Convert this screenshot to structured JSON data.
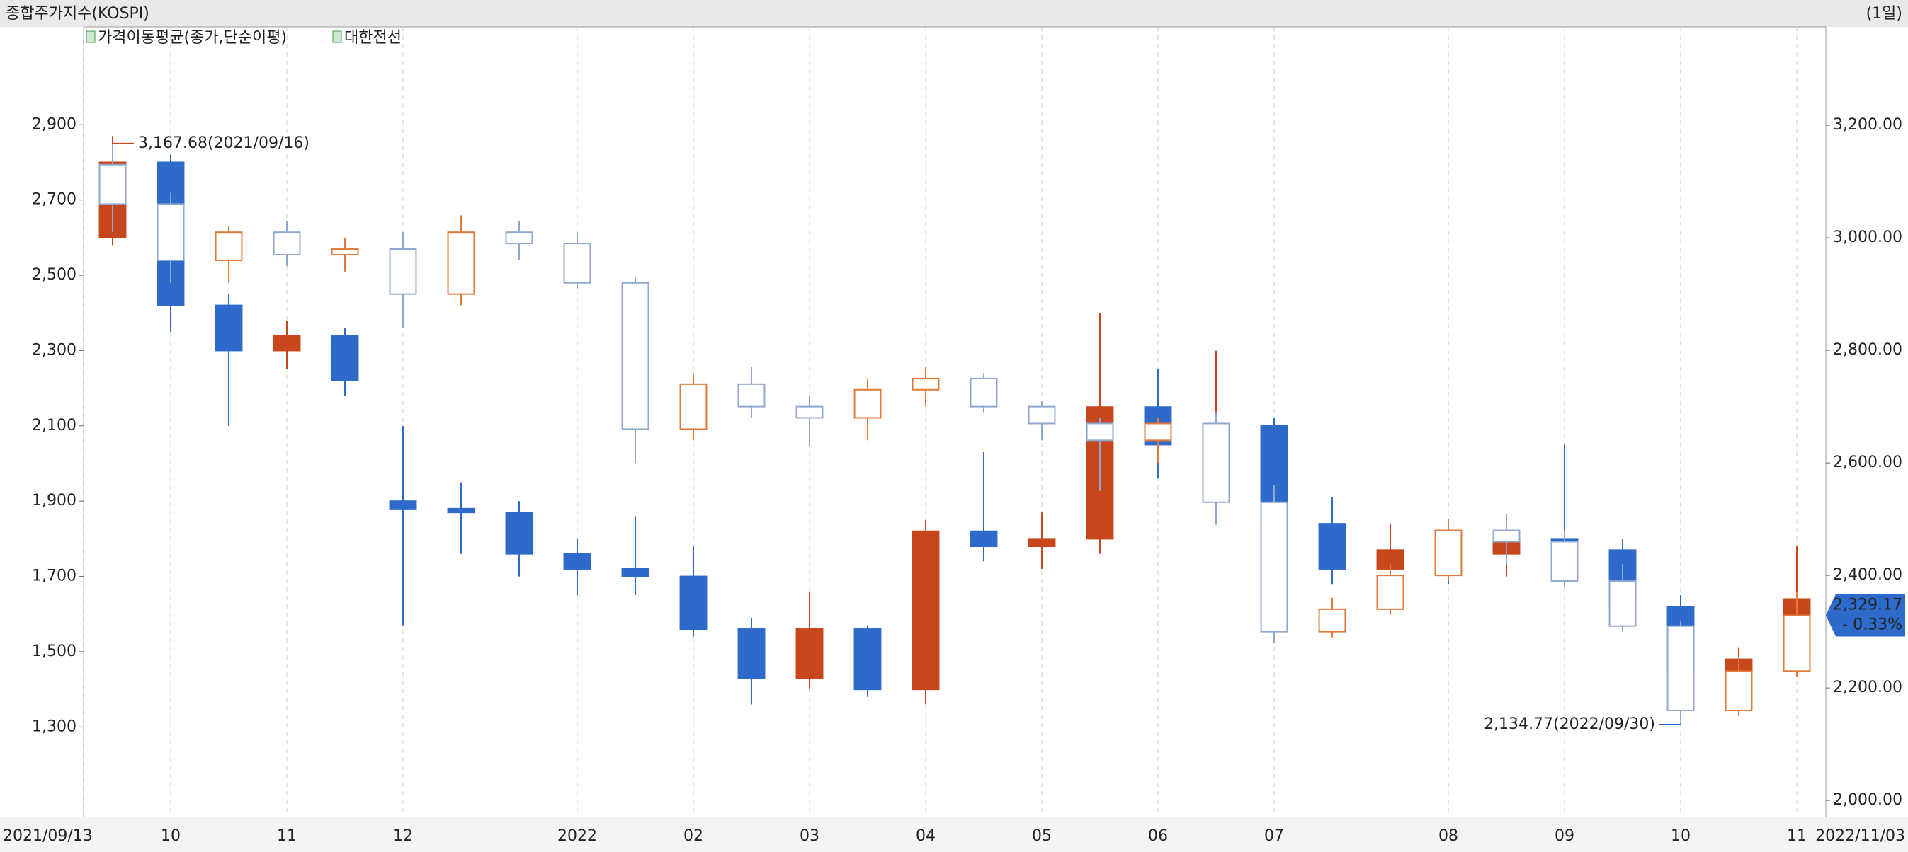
{
  "chart_data": {
    "type": "candlestick",
    "title": "종합주가지수(KOSPI)",
    "period": "(1일)",
    "indicator": "가격이동평균(종가,단순이평)",
    "categories": [
      "2021/09/13",
      "10",
      null,
      "11",
      null,
      "12",
      null,
      null,
      "2022",
      null,
      "02",
      null,
      "03",
      null,
      "04",
      null,
      "05",
      null,
      "06",
      null,
      "07",
      null,
      null,
      "08",
      null,
      "09",
      null,
      "10",
      null,
      "11"
    ],
    "end_date": "2022/11/03",
    "up_color": "#c8461b",
    "down_color": "#2d6ac9",
    "hollow_up_color": "#e07a3a",
    "hollow_down_color": "#8fa8cf",
    "ylim": [
      1060,
      3160
    ],
    "yticks": [
      {
        "value": 1300,
        "label": "1,300"
      },
      {
        "value": 1500,
        "label": "1,500"
      },
      {
        "value": 1700,
        "label": "1,700"
      },
      {
        "value": 1900,
        "label": "1,900"
      },
      {
        "value": 2100,
        "label": "2,100"
      },
      {
        "value": 2300,
        "label": "2,300"
      },
      {
        "value": 2500,
        "label": "2,500"
      },
      {
        "value": 2700,
        "label": "2,700"
      },
      {
        "value": 2900,
        "label": "2,900"
      }
    ],
    "y2lim": [
      1970,
      3375
    ],
    "y2ticks": [
      {
        "value": 2000,
        "label": "2,000.00"
      },
      {
        "value": 2200,
        "label": "2,200.00"
      },
      {
        "value": 2400,
        "label": "2,400.00"
      },
      {
        "value": 2600,
        "label": "2,600.00"
      },
      {
        "value": 2800,
        "label": "2,800.00"
      },
      {
        "value": 3000,
        "label": "3,000.00"
      },
      {
        "value": 3200,
        "label": "3,200.00"
      }
    ],
    "series": [
      {
        "name": "대한전선",
        "axis": "y",
        "hollow": false,
        "open": [
          2600,
          2800,
          2420,
          2300,
          2340,
          1900,
          1880,
          1870,
          1760,
          1720,
          1700,
          1560,
          1430,
          1560,
          1400,
          1820,
          1780,
          1800,
          2150,
          2050,
          2100,
          1840,
          1720,
          1770,
          1760,
          1800,
          1770,
          1620,
          1450,
          1480
        ],
        "high": [
          2870,
          2820,
          2450,
          2380,
          2360,
          2100,
          1950,
          1900,
          1800,
          1860,
          1780,
          1590,
          1660,
          1570,
          1850,
          2030,
          1870,
          2400,
          2250,
          2300,
          2120,
          1910,
          1840,
          1820,
          1850,
          2050,
          1800,
          1650,
          1510,
          1780
        ],
        "low": [
          2580,
          2350,
          2100,
          2250,
          2180,
          1570,
          1760,
          1700,
          1650,
          1650,
          1540,
          1360,
          1400,
          1380,
          1360,
          1740,
          1720,
          1760,
          1960,
          1950,
          1760,
          1680,
          1640,
          1680,
          1700,
          1730,
          1600,
          1380,
          1330,
          1460
        ],
        "close": [
          2800,
          2420,
          2300,
          2340,
          2220,
          1880,
          1870,
          1760,
          1720,
          1700,
          1560,
          1430,
          1560,
          1400,
          1820,
          1780,
          1800,
          2150,
          2050,
          2100,
          1840,
          1720,
          1770,
          1760,
          1800,
          1770,
          1620,
          1450,
          1480,
          1640
        ]
      },
      {
        "axis": "y2",
        "hollow": true,
        "open": [
          3130,
          3060,
          2960,
          3010,
          2970,
          2980,
          2900,
          3010,
          2990,
          2920,
          2660,
          2740,
          2700,
          2680,
          2730,
          2750,
          2700,
          2670,
          2640,
          2670,
          2530,
          2300,
          2340,
          2400,
          2480,
          2460,
          2390,
          2310,
          2160,
          2230
        ],
        "high": [
          3167.68,
          3080,
          3020,
          3030,
          3000,
          3010,
          3040,
          3030,
          3010,
          2930,
          2760,
          2770,
          2720,
          2750,
          2770,
          2760,
          2710,
          2680,
          2680,
          2690,
          2560,
          2360,
          2420,
          2500,
          2510,
          2480,
          2420,
          2320,
          2260,
          2370
        ],
        "low": [
          3010,
          2920,
          2920,
          2950,
          2940,
          2840,
          2880,
          2960,
          2910,
          2600,
          2640,
          2680,
          2630,
          2640,
          2700,
          2690,
          2640,
          2550,
          2600,
          2490,
          2280,
          2290,
          2330,
          2390,
          2420,
          2380,
          2300,
          2134.77,
          2150,
          2220
        ],
        "close": [
          3060,
          2960,
          3010,
          2970,
          2980,
          2900,
          3010,
          2990,
          2920,
          2660,
          2740,
          2700,
          2680,
          2730,
          2750,
          2700,
          2670,
          2640,
          2670,
          2530,
          2300,
          2340,
          2400,
          2480,
          2460,
          2390,
          2310,
          2160,
          2230,
          2329.17
        ]
      }
    ],
    "annotations": [
      {
        "text": "3,167.68(2021/09/16)",
        "series": 1,
        "index": 0,
        "field": "high",
        "color": "#c8461b"
      },
      {
        "text": "2,134.77(2022/09/30)",
        "series": 1,
        "index": 27,
        "field": "low",
        "color": "#2d6ac9"
      }
    ],
    "last_price": {
      "label": "2,329.17",
      "change": "- 0.33%",
      "value": 2329.17,
      "color": "#2d6ac9"
    }
  }
}
